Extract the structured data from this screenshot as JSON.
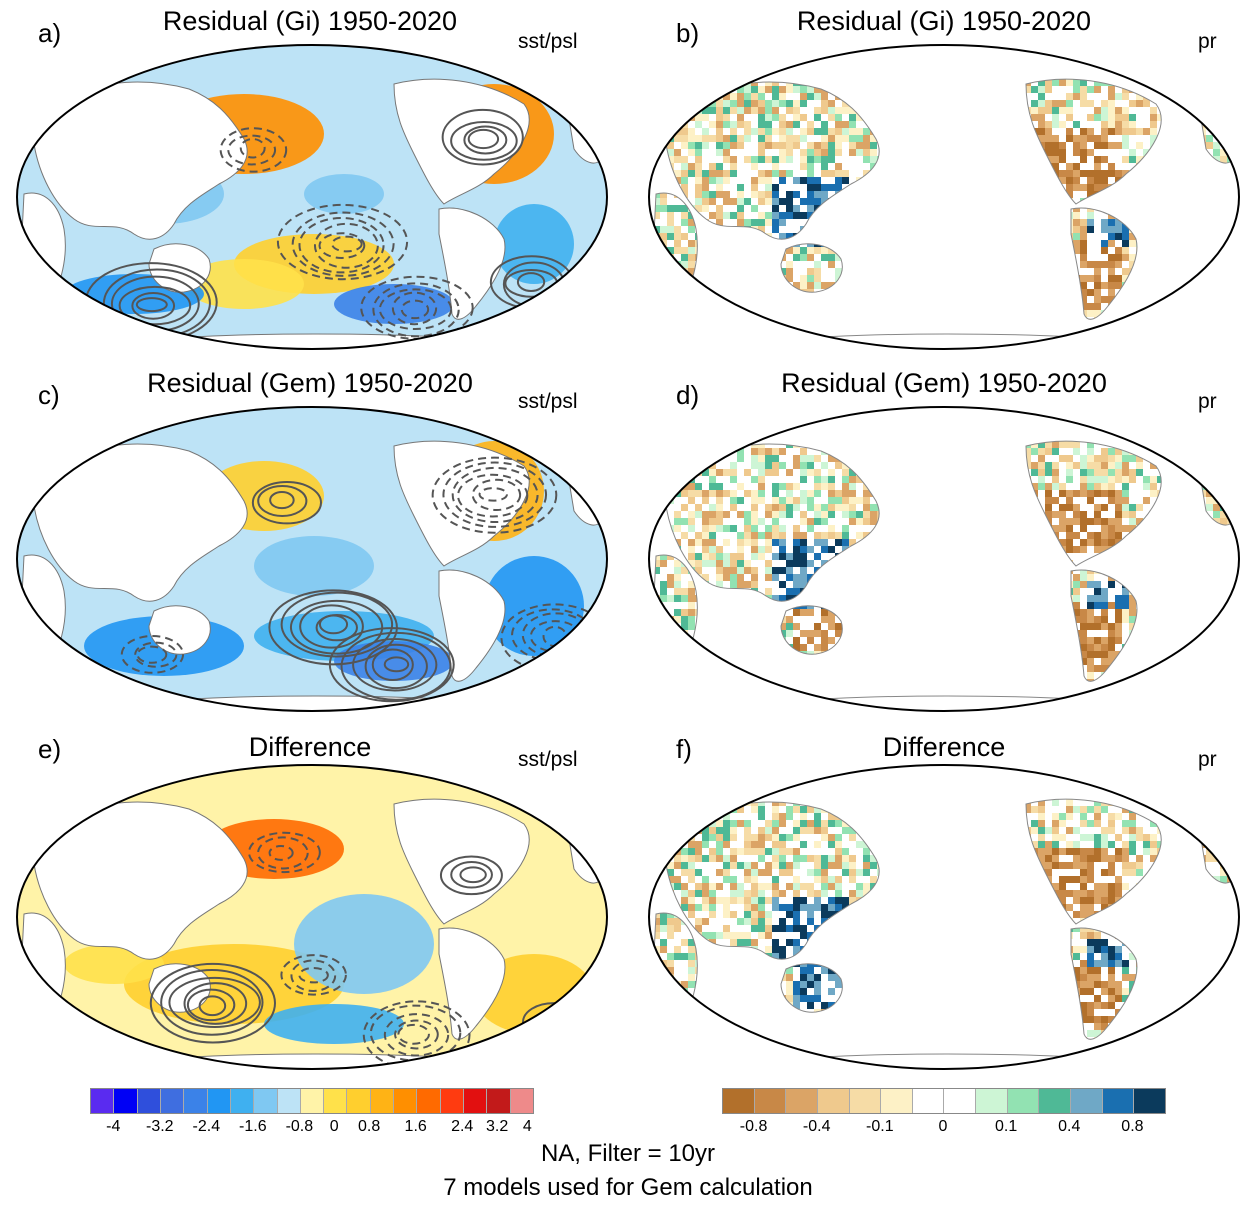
{
  "panels": [
    {
      "letter": "a)",
      "title": "Residual (Gi) 1950-2020",
      "var": "sst/psl",
      "field": "sst",
      "variant": 0
    },
    {
      "letter": "b)",
      "title": "Residual (Gi) 1950-2020",
      "var": "pr",
      "field": "pr",
      "variant": 0
    },
    {
      "letter": "c)",
      "title": "Residual (Gem) 1950-2020",
      "var": "sst/psl",
      "field": "sst",
      "variant": 1
    },
    {
      "letter": "d)",
      "title": "Residual (Gem) 1950-2020",
      "var": "pr",
      "field": "pr",
      "variant": 1
    },
    {
      "letter": "e)",
      "title": "Difference",
      "var": "sst/psl",
      "field": "sst",
      "variant": 2
    },
    {
      "letter": "f)",
      "title": "Difference",
      "var": "pr",
      "field": "pr",
      "variant": 2
    }
  ],
  "colorbar_left": {
    "colors": [
      "#5a2bf0",
      "#0000f5",
      "#2f4fdc",
      "#3f6ee0",
      "#3b82e8",
      "#2196f3",
      "#3fb0f0",
      "#7fc8f2",
      "#bde3f6",
      "#fff3a8",
      "#ffe14a",
      "#ffcf2e",
      "#ffb315",
      "#ff8f00",
      "#ff6a00",
      "#ff3b10",
      "#e21010",
      "#c21a1a",
      "#ee8a8a"
    ],
    "ticks": [
      "-4",
      "-3.2",
      "-2.4",
      "-1.6",
      "-0.8",
      "0",
      "0.8",
      "1.6",
      "2.4",
      "3.2",
      "4"
    ]
  },
  "colorbar_right": {
    "colors": [
      "#b2702b",
      "#c88847",
      "#dba466",
      "#efc98d",
      "#f6dca6",
      "#fdf1c6",
      "#ffffff",
      "#ffffff",
      "#cdf5d5",
      "#92e2b2",
      "#4fb996",
      "#6fa8c6",
      "#1a6fb0",
      "#0b3a5c"
    ],
    "ticks": [
      "-0.8",
      "-0.4",
      "-0.1",
      "0",
      "0.1",
      "0.4",
      "0.8"
    ]
  },
  "footer": {
    "line1": "NA, Filter = 10yr",
    "line2": "7 models used for Gem calculation"
  }
}
